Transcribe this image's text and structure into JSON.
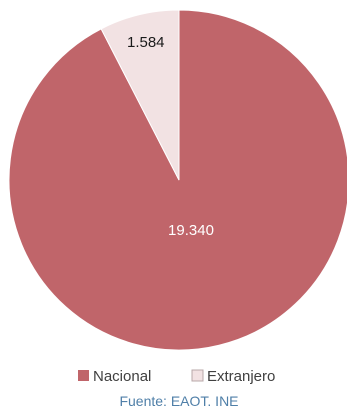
{
  "chart_data": {
    "type": "pie",
    "title": "",
    "categories": [
      "Nacional",
      "Extranjero"
    ],
    "values": [
      19340,
      1584
    ],
    "value_labels": [
      "19.340",
      "1.584"
    ],
    "colors": [
      "#c0656a",
      "#f2e2e3"
    ],
    "label_colors": [
      "#ffffff",
      "#1a1a1a"
    ],
    "start_angle_deg": 0,
    "direction": "clockwise",
    "legend_position": "bottom",
    "source": "Fuente: EAOT. INE"
  }
}
